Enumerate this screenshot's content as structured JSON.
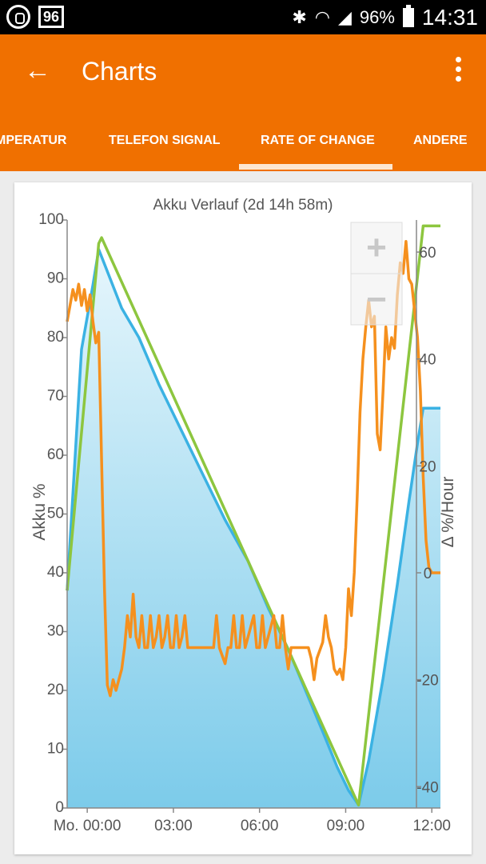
{
  "status_bar": {
    "notif_icons": [
      "whatsapp-icon",
      "badge-icon"
    ],
    "badge_text": "96",
    "battery_text": "96%",
    "time": "14:31"
  },
  "app_bar": {
    "title": "Charts"
  },
  "tabs": [
    {
      "label": "MPERATUR",
      "selected": false
    },
    {
      "label": "TELEFON SIGNAL",
      "selected": false
    },
    {
      "label": "RATE OF CHANGE",
      "selected": true
    },
    {
      "label": "ANDERE",
      "selected": false
    }
  ],
  "zoom": {
    "plus": "+",
    "minus": "−"
  },
  "chart_data": {
    "type": "line",
    "title": "Akku Verlauf (2d 14h 58m)",
    "ylabel_left": "Akku %",
    "ylabel_right": "Δ %/Hour",
    "x_ticks": [
      "Mo. 00:00",
      "03:00",
      "06:00",
      "09:00",
      "12:00"
    ],
    "x_tick_hours": [
      0,
      3,
      6,
      9,
      12
    ],
    "xlim_hours": [
      -0.7,
      12.3
    ],
    "y_left_ticks": [
      0,
      10,
      20,
      30,
      40,
      50,
      60,
      70,
      80,
      90,
      100
    ],
    "y_left_lim": [
      0,
      100
    ],
    "y_right_ticks": [
      -40,
      -20,
      0,
      20,
      40,
      60
    ],
    "y_right_lim": [
      -44,
      66
    ],
    "series": [
      {
        "name": "",
        "axis": "left",
        "color": "#3bb2e3",
        "fill": true,
        "points": [
          [
            -0.7,
            37
          ],
          [
            -0.2,
            78
          ],
          [
            0.2,
            89
          ],
          [
            0.4,
            95
          ],
          [
            0.8,
            90
          ],
          [
            1.2,
            85
          ],
          [
            1.8,
            80
          ],
          [
            2.5,
            72
          ],
          [
            3.2,
            65
          ],
          [
            4,
            57
          ],
          [
            4.8,
            49
          ],
          [
            5.6,
            42
          ],
          [
            6.3,
            34
          ],
          [
            7,
            27
          ],
          [
            7.6,
            20
          ],
          [
            8.2,
            13
          ],
          [
            8.7,
            7
          ],
          [
            9.1,
            3
          ],
          [
            9.45,
            0.5
          ],
          [
            9.8,
            8
          ],
          [
            10.3,
            22
          ],
          [
            10.8,
            38
          ],
          [
            11.2,
            52
          ],
          [
            11.5,
            62
          ],
          [
            11.7,
            68
          ],
          [
            12.3,
            68
          ]
        ]
      },
      {
        "name": "",
        "axis": "left",
        "color": "#8dc63f",
        "fill": false,
        "points": [
          [
            -0.7,
            37
          ],
          [
            0.4,
            96
          ],
          [
            0.5,
            97
          ],
          [
            9.45,
            0.5
          ],
          [
            11.7,
            99
          ],
          [
            12.3,
            99
          ]
        ]
      },
      {
        "name": "",
        "axis": "right",
        "color": "#f5901e",
        "fill": false,
        "points": [
          [
            -0.7,
            47
          ],
          [
            -0.6,
            50
          ],
          [
            -0.5,
            53
          ],
          [
            -0.4,
            51
          ],
          [
            -0.3,
            54
          ],
          [
            -0.2,
            50
          ],
          [
            -0.1,
            53
          ],
          [
            0,
            49
          ],
          [
            0.1,
            52
          ],
          [
            0.2,
            47
          ],
          [
            0.3,
            43
          ],
          [
            0.4,
            45
          ],
          [
            0.6,
            -3
          ],
          [
            0.7,
            -21
          ],
          [
            0.8,
            -23
          ],
          [
            0.9,
            -20
          ],
          [
            1.0,
            -22
          ],
          [
            1.1,
            -20
          ],
          [
            1.2,
            -18
          ],
          [
            1.3,
            -14
          ],
          [
            1.4,
            -8
          ],
          [
            1.5,
            -12
          ],
          [
            1.6,
            -4
          ],
          [
            1.7,
            -12
          ],
          [
            1.8,
            -14
          ],
          [
            1.9,
            -8
          ],
          [
            2.0,
            -14
          ],
          [
            2.1,
            -14
          ],
          [
            2.2,
            -8
          ],
          [
            2.3,
            -14
          ],
          [
            2.4,
            -12
          ],
          [
            2.5,
            -8
          ],
          [
            2.6,
            -14
          ],
          [
            2.7,
            -12
          ],
          [
            2.8,
            -8
          ],
          [
            2.9,
            -14
          ],
          [
            3.0,
            -14
          ],
          [
            3.1,
            -8
          ],
          [
            3.2,
            -14
          ],
          [
            3.3,
            -12
          ],
          [
            3.4,
            -8
          ],
          [
            3.5,
            -14
          ],
          [
            3.6,
            -14
          ],
          [
            3.8,
            -14
          ],
          [
            4.0,
            -14
          ],
          [
            4.2,
            -14
          ],
          [
            4.4,
            -14
          ],
          [
            4.5,
            -8
          ],
          [
            4.6,
            -14
          ],
          [
            4.8,
            -17
          ],
          [
            4.9,
            -14
          ],
          [
            5.0,
            -14
          ],
          [
            5.1,
            -8
          ],
          [
            5.2,
            -14
          ],
          [
            5.3,
            -14
          ],
          [
            5.4,
            -8
          ],
          [
            5.5,
            -14
          ],
          [
            5.6,
            -12
          ],
          [
            5.8,
            -8
          ],
          [
            5.9,
            -14
          ],
          [
            6.0,
            -14
          ],
          [
            6.1,
            -8
          ],
          [
            6.2,
            -14
          ],
          [
            6.3,
            -12
          ],
          [
            6.5,
            -8
          ],
          [
            6.6,
            -14
          ],
          [
            6.7,
            -14
          ],
          [
            6.8,
            -8
          ],
          [
            6.9,
            -14
          ],
          [
            7.0,
            -18
          ],
          [
            7.1,
            -14
          ],
          [
            7.3,
            -14
          ],
          [
            7.5,
            -14
          ],
          [
            7.7,
            -14
          ],
          [
            7.8,
            -16
          ],
          [
            7.9,
            -20
          ],
          [
            8.0,
            -16
          ],
          [
            8.2,
            -13
          ],
          [
            8.3,
            -8
          ],
          [
            8.4,
            -12
          ],
          [
            8.5,
            -14
          ],
          [
            8.6,
            -18
          ],
          [
            8.7,
            -19
          ],
          [
            8.8,
            -18
          ],
          [
            8.9,
            -20
          ],
          [
            9.0,
            -14
          ],
          [
            9.1,
            -3
          ],
          [
            9.2,
            -8
          ],
          [
            9.3,
            0
          ],
          [
            9.4,
            14
          ],
          [
            9.5,
            30
          ],
          [
            9.6,
            40
          ],
          [
            9.7,
            46
          ],
          [
            9.8,
            51
          ],
          [
            9.9,
            46
          ],
          [
            10.0,
            48
          ],
          [
            10.1,
            26
          ],
          [
            10.2,
            23
          ],
          [
            10.3,
            34
          ],
          [
            10.4,
            46
          ],
          [
            10.5,
            40
          ],
          [
            10.6,
            44
          ],
          [
            10.7,
            42
          ],
          [
            10.8,
            52
          ],
          [
            10.9,
            58
          ],
          [
            11.0,
            56
          ],
          [
            11.1,
            62
          ],
          [
            11.2,
            55
          ],
          [
            11.3,
            54
          ],
          [
            11.5,
            44
          ],
          [
            11.6,
            34
          ],
          [
            11.7,
            18
          ],
          [
            11.8,
            6
          ],
          [
            11.9,
            1
          ],
          [
            12.0,
            0
          ],
          [
            12.3,
            0
          ]
        ]
      }
    ]
  }
}
